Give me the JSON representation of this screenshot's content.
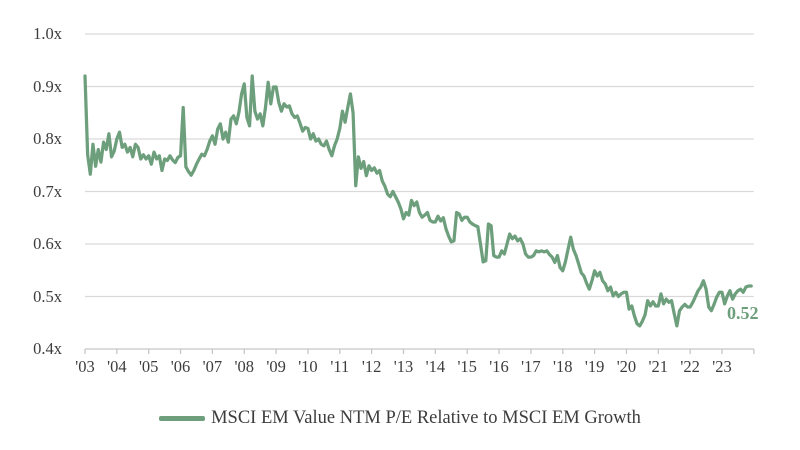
{
  "chart_data": {
    "type": "line",
    "title": "",
    "legend_position": "bottom",
    "grid": true,
    "ylim": [
      0.4,
      1.0
    ],
    "y_tick_step": 0.1,
    "y_tick_labels": [
      "1.0x",
      "0.9x",
      "0.8x",
      "0.7x",
      "0.6x",
      "0.5x",
      "0.4x"
    ],
    "x_start_year": 2003,
    "points_per_year": 12,
    "x_tick_labels": [
      "'03",
      "'04",
      "'05",
      "'06",
      "'07",
      "'08",
      "'09",
      "'10",
      "'11",
      "'12",
      "'13",
      "'14",
      "'15",
      "'16",
      "'17",
      "'18",
      "'19",
      "'20",
      "'21",
      "'22",
      "'23"
    ],
    "end_label": "0.52",
    "colors": {
      "line": "#6e9f7c",
      "grid": "#d9d9d9",
      "axis": "#c6c6c6",
      "text": "#3d3d3d",
      "end_label": "#6e9f7c"
    },
    "series": [
      {
        "name": "MSCI EM Value NTM P/E Relative to MSCI EM Growth",
        "values": [
          0.92,
          0.77,
          0.733,
          0.79,
          0.748,
          0.78,
          0.756,
          0.794,
          0.78,
          0.81,
          0.766,
          0.777,
          0.8,
          0.813,
          0.784,
          0.79,
          0.775,
          0.784,
          0.766,
          0.79,
          0.784,
          0.762,
          0.77,
          0.762,
          0.768,
          0.752,
          0.775,
          0.762,
          0.768,
          0.74,
          0.762,
          0.759,
          0.768,
          0.76,
          0.755,
          0.765,
          0.768,
          0.86,
          0.747,
          0.738,
          0.731,
          0.74,
          0.752,
          0.762,
          0.771,
          0.768,
          0.78,
          0.796,
          0.806,
          0.79,
          0.819,
          0.829,
          0.8,
          0.813,
          0.794,
          0.838,
          0.844,
          0.829,
          0.851,
          0.886,
          0.905,
          0.841,
          0.825,
          0.92,
          0.853,
          0.838,
          0.848,
          0.825,
          0.86,
          0.908,
          0.867,
          0.899,
          0.899,
          0.87,
          0.853,
          0.867,
          0.861,
          0.863,
          0.848,
          0.841,
          0.844,
          0.83,
          0.815,
          0.822,
          0.82,
          0.8,
          0.81,
          0.796,
          0.8,
          0.79,
          0.787,
          0.796,
          0.78,
          0.768,
          0.787,
          0.8,
          0.82,
          0.853,
          0.832,
          0.86,
          0.886,
          0.85,
          0.711,
          0.766,
          0.744,
          0.757,
          0.73,
          0.749,
          0.74,
          0.745,
          0.735,
          0.74,
          0.72,
          0.71,
          0.695,
          0.69,
          0.7,
          0.69,
          0.68,
          0.667,
          0.648,
          0.66,
          0.655,
          0.683,
          0.673,
          0.68,
          0.66,
          0.651,
          0.655,
          0.66,
          0.645,
          0.642,
          0.642,
          0.653,
          0.644,
          0.65,
          0.629,
          0.615,
          0.604,
          0.606,
          0.66,
          0.657,
          0.645,
          0.651,
          0.651,
          0.642,
          0.638,
          0.635,
          0.633,
          0.6,
          0.566,
          0.568,
          0.638,
          0.635,
          0.578,
          0.575,
          0.575,
          0.587,
          0.581,
          0.6,
          0.619,
          0.61,
          0.615,
          0.606,
          0.61,
          0.6,
          0.581,
          0.575,
          0.575,
          0.578,
          0.587,
          0.585,
          0.587,
          0.585,
          0.587,
          0.58,
          0.575,
          0.565,
          0.578,
          0.555,
          0.549,
          0.566,
          0.59,
          0.613,
          0.59,
          0.578,
          0.562,
          0.545,
          0.539,
          0.525,
          0.514,
          0.53,
          0.549,
          0.539,
          0.546,
          0.53,
          0.524,
          0.511,
          0.518,
          0.501,
          0.508,
          0.5,
          0.505,
          0.508,
          0.508,
          0.476,
          0.482,
          0.463,
          0.448,
          0.444,
          0.453,
          0.465,
          0.492,
          0.482,
          0.49,
          0.482,
          0.482,
          0.505,
          0.486,
          0.495,
          0.489,
          0.492,
          0.467,
          0.444,
          0.473,
          0.48,
          0.485,
          0.48,
          0.48,
          0.489,
          0.5,
          0.511,
          0.518,
          0.53,
          0.514,
          0.48,
          0.473,
          0.485,
          0.499,
          0.508,
          0.508,
          0.486,
          0.501,
          0.511,
          0.495,
          0.505,
          0.511,
          0.514,
          0.508,
          0.518,
          0.52,
          0.52
        ]
      }
    ]
  }
}
